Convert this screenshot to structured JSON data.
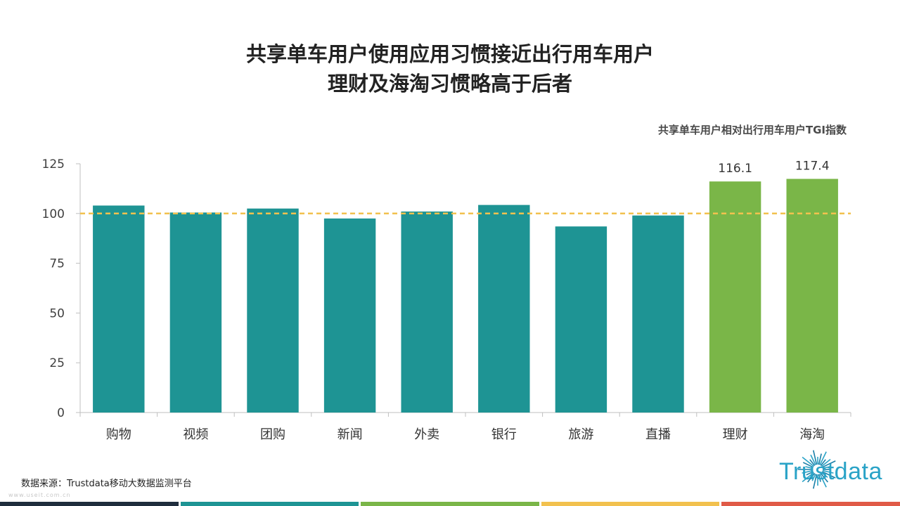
{
  "title_line1": "共享单车用户使用应用习惯接近出行用车用户",
  "title_line2": "理财及海淘习惯略高于后者",
  "source": "数据来源：Trustdata移动大数据监测平台",
  "watermark": "www.useit.com.cn",
  "logo_text": "Trustdata",
  "colors": {
    "teal": "#1e9494",
    "green": "#7ab648",
    "reference_line": "#f2c14e",
    "footer": [
      "#1f2d3d",
      "#1e9494",
      "#7ab648",
      "#f2c14e",
      "#e05a47"
    ]
  },
  "chart_data": {
    "type": "bar",
    "title": "共享单车用户相对出行用车用户TGI指数",
    "categories": [
      "购物",
      "视频",
      "团购",
      "新闻",
      "外卖",
      "银行",
      "旅游",
      "直播",
      "理财",
      "海淘"
    ],
    "values": [
      104,
      100.5,
      102.5,
      97.5,
      101,
      104.3,
      93.5,
      99,
      116.1,
      117.4
    ],
    "highlighted": [
      false,
      false,
      false,
      false,
      false,
      false,
      false,
      false,
      true,
      true
    ],
    "data_labels": [
      "",
      "",
      "",
      "",
      "",
      "",
      "",
      "",
      "116.1",
      "117.4"
    ],
    "reference_line": 100,
    "ylim": [
      0,
      125
    ],
    "yticks": [
      0,
      25,
      50,
      75,
      100,
      125
    ],
    "xlabel": "",
    "ylabel": "",
    "grid": false
  }
}
